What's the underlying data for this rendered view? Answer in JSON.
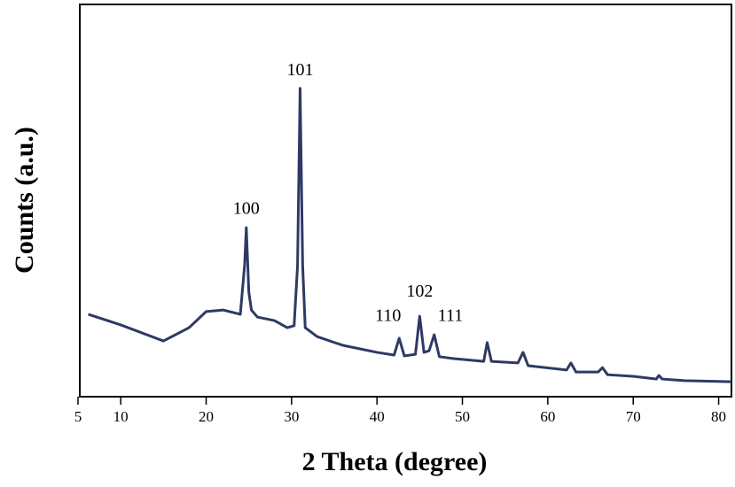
{
  "chart_data": {
    "type": "line",
    "xlabel": "2 Theta (degree)",
    "ylabel": "Counts (a.u.)",
    "xlim": [
      5,
      81.5
    ],
    "ylim": [
      0,
      100
    ],
    "xticks": [
      5,
      10,
      20,
      30,
      40,
      50,
      60,
      70,
      80
    ],
    "x": [
      6.2,
      10,
      15,
      18,
      20,
      22,
      24,
      24.5,
      24.7,
      25,
      25.3,
      26,
      28,
      29.5,
      30.3,
      30.7,
      31.0,
      31.3,
      31.6,
      33,
      36,
      40,
      42,
      42.6,
      43.2,
      44.5,
      45.0,
      45.5,
      46.1,
      46.7,
      47.3,
      49,
      52.5,
      52.9,
      53.4,
      56.5,
      57.1,
      57.7,
      62.2,
      62.7,
      63.3,
      65.9,
      66.4,
      67,
      70,
      72.7,
      73,
      73.4,
      76,
      81.5
    ],
    "series": [
      {
        "color": "#2e3a64",
        "values": [
          21.0,
          18.3,
          14.2,
          17.6,
          21.7,
          22.1,
          21.0,
          33.4,
          43.1,
          26.6,
          22.1,
          20.3,
          19.4,
          17.6,
          18.1,
          33.4,
          78.6,
          33.4,
          17.6,
          15.3,
          13.1,
          11.3,
          10.6,
          14.9,
          10.4,
          10.8,
          20.5,
          11.3,
          11.7,
          15.8,
          10.2,
          9.7,
          9.0,
          13.8,
          9.0,
          8.6,
          11.3,
          7.9,
          6.8,
          8.6,
          6.3,
          6.3,
          7.4,
          5.6,
          5.2,
          4.5,
          5.4,
          4.5,
          4.1,
          3.8
        ]
      }
    ],
    "annotations": [
      {
        "text": "100",
        "x": 24.7,
        "y": 47.6
      },
      {
        "text": "101",
        "x": 31.0,
        "y": 83
      },
      {
        "text": "110",
        "x": 41.3,
        "y": 20.3
      },
      {
        "text": "102",
        "x": 45.0,
        "y": 26.6
      },
      {
        "text": "111",
        "x": 48.6,
        "y": 20.3
      }
    ]
  }
}
